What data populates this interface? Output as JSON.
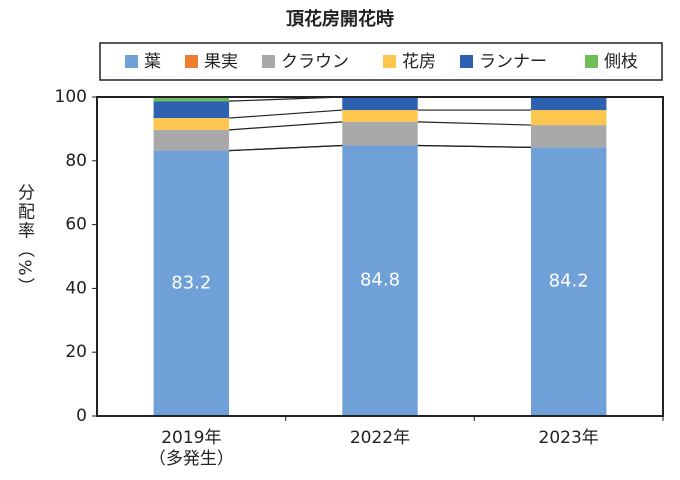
{
  "chart_data": {
    "type": "stacked_bar",
    "title": "頂花房開花時",
    "categories": [
      [
        "2019年",
        "（多発生）"
      ],
      [
        "2022年"
      ],
      [
        "2023年"
      ]
    ],
    "series": [
      {
        "name": "葉",
        "color": "#70a0d8",
        "values": [
          83.2,
          84.8,
          84.2
        ],
        "labels": true
      },
      {
        "name": "果実",
        "color": "#ed7d31",
        "values": [
          0,
          0,
          0
        ]
      },
      {
        "name": "クラウン",
        "color": "#a9a9a9",
        "values": [
          6.5,
          7.4,
          7.0
        ]
      },
      {
        "name": "花房",
        "color": "#fcc64f",
        "values": [
          3.7,
          3.7,
          4.7
        ]
      },
      {
        "name": "ランナー",
        "color": "#2e62b0",
        "values": [
          5.3,
          4.1,
          4.1
        ]
      },
      {
        "name": "側枝",
        "color": "#6fbf57",
        "values": [
          1.3,
          0,
          0
        ]
      }
    ],
    "y_label": "分配率（%）",
    "ylim": [
      0,
      100
    ],
    "yticks": [
      0,
      20,
      40,
      60,
      80,
      100
    ]
  }
}
